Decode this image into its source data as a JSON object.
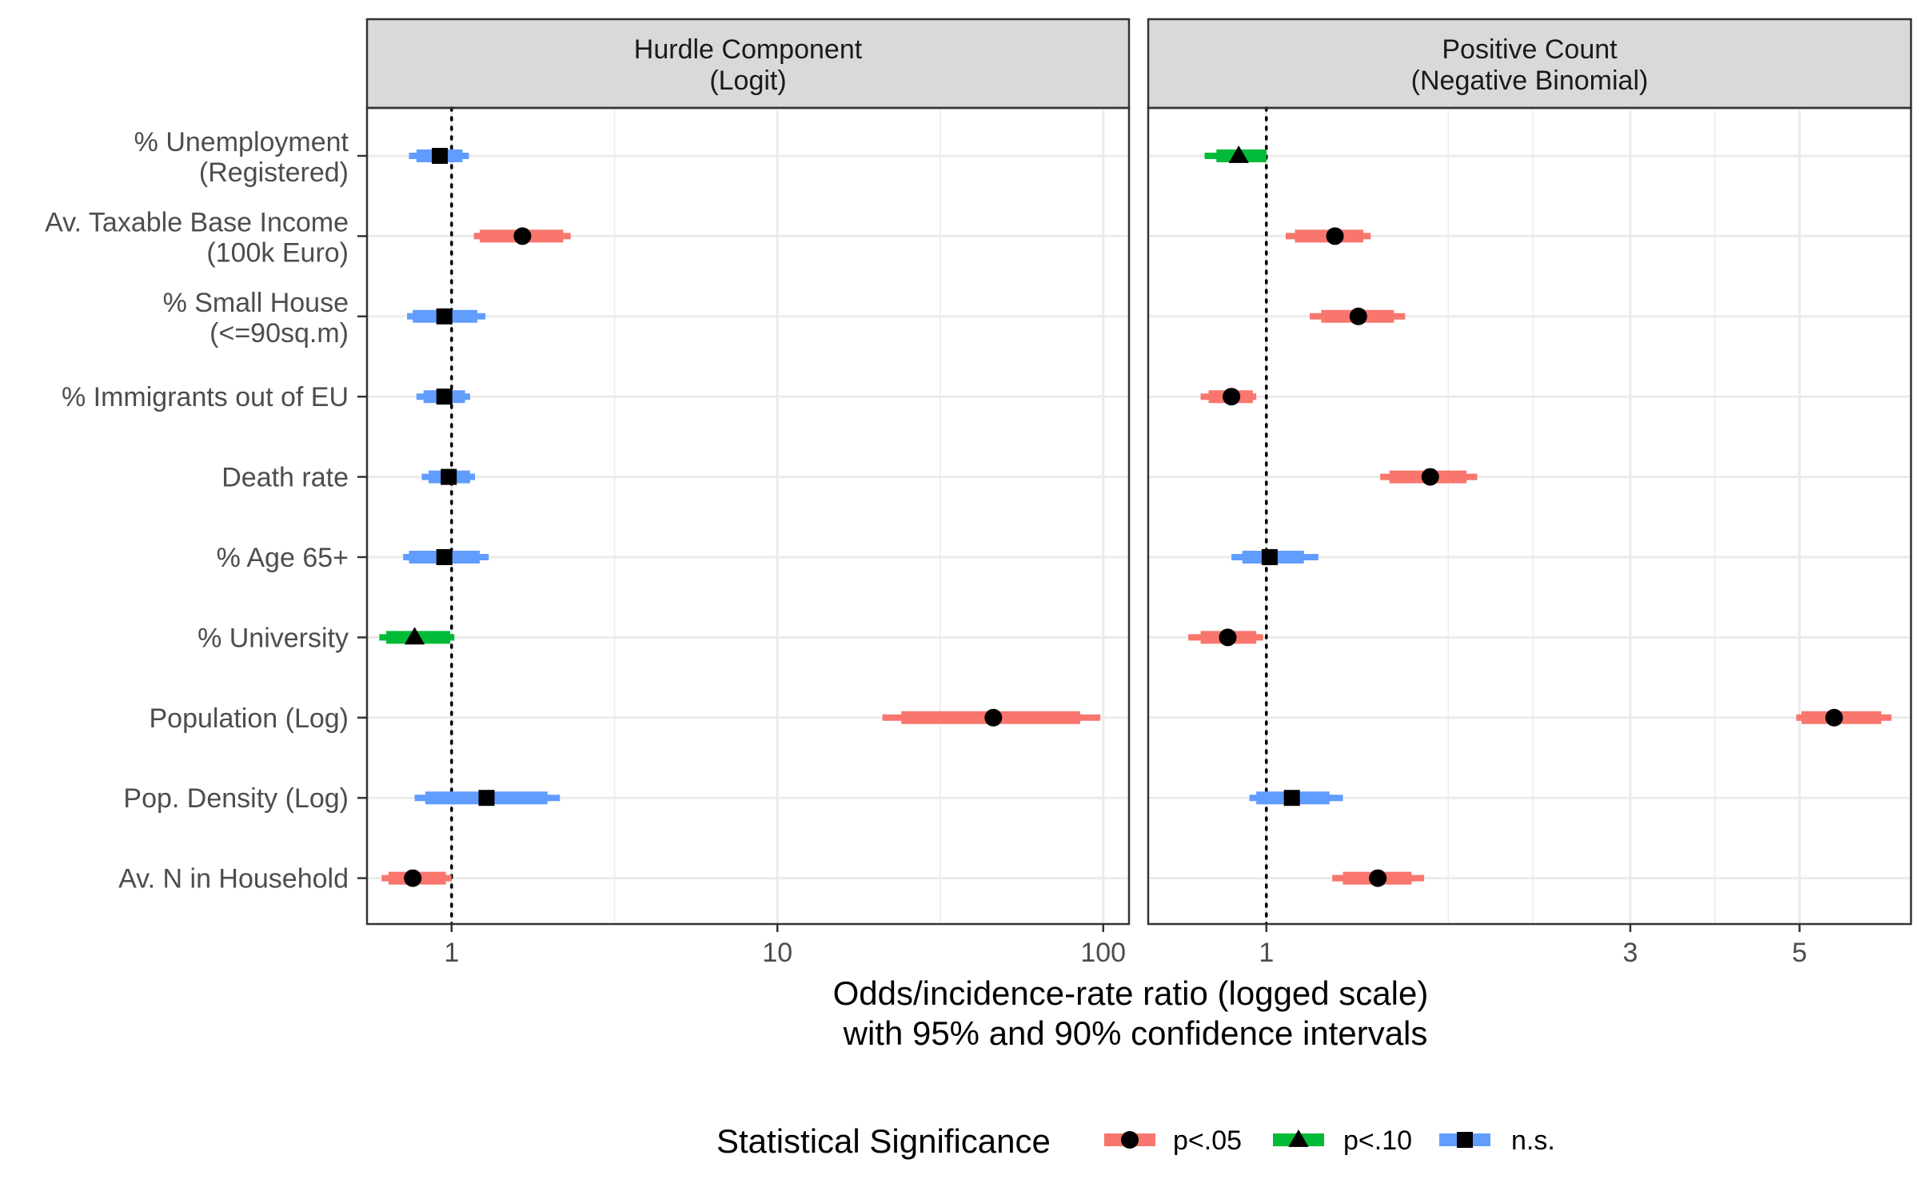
{
  "chart_data": {
    "type": "forest",
    "x_title_line1": "Odds/incidence-rate ratio (logged scale)",
    "x_title_line2": "with 95% and 90% confidence intervals",
    "x_scale": "log",
    "grid": true,
    "reference_line": 1,
    "variables": [
      {
        "line1": "% Unemployment",
        "line2": "(Registered)"
      },
      {
        "line1": "Av. Taxable Base Income",
        "line2": "(100k Euro)"
      },
      {
        "line1": "% Small House",
        "line2": "(<=90sq.m)"
      },
      {
        "line1": "% Immigrants out of EU",
        "line2": ""
      },
      {
        "line1": "Death rate",
        "line2": ""
      },
      {
        "line1": "% Age 65+",
        "line2": ""
      },
      {
        "line1": "% University",
        "line2": ""
      },
      {
        "line1": "Population (Log)",
        "line2": ""
      },
      {
        "line1": "Pop. Density (Log)",
        "line2": ""
      },
      {
        "line1": "Av. N in Household",
        "line2": ""
      }
    ],
    "legend": {
      "title": "Statistical Significance",
      "placement": "bottom",
      "entries": [
        {
          "key": "sig05",
          "label": "p<.05",
          "color": "#F8766D",
          "shape": "circle"
        },
        {
          "key": "sig10",
          "label": "p<.10",
          "color": "#00BA38",
          "shape": "triangle"
        },
        {
          "key": "ns",
          "label": "n.s.",
          "color": "#619CFF",
          "shape": "square"
        }
      ]
    },
    "panels": [
      {
        "title_line1": "Hurdle Component",
        "title_line2": "(Logit)",
        "xlim": [
          0.55,
          120
        ],
        "ticks": [
          1,
          10,
          100
        ],
        "tick_labels": [
          "1",
          "10",
          "100"
        ],
        "minor_grid": [
          3.162,
          31.62
        ],
        "estimates": [
          {
            "est": 0.92,
            "ci90": [
              0.78,
              1.08
            ],
            "ci95": [
              0.74,
              1.13
            ],
            "sig": "ns"
          },
          {
            "est": 1.65,
            "ci90": [
              1.22,
              2.2
            ],
            "ci95": [
              1.17,
              2.32
            ],
            "sig": "sig05"
          },
          {
            "est": 0.95,
            "ci90": [
              0.76,
              1.2
            ],
            "ci95": [
              0.73,
              1.27
            ],
            "sig": "ns"
          },
          {
            "est": 0.95,
            "ci90": [
              0.82,
              1.1
            ],
            "ci95": [
              0.78,
              1.14
            ],
            "sig": "ns"
          },
          {
            "est": 0.98,
            "ci90": [
              0.85,
              1.14
            ],
            "ci95": [
              0.81,
              1.18
            ],
            "sig": "ns"
          },
          {
            "est": 0.95,
            "ci90": [
              0.74,
              1.22
            ],
            "ci95": [
              0.71,
              1.3
            ],
            "sig": "ns"
          },
          {
            "est": 0.77,
            "ci90": [
              0.63,
              0.99
            ],
            "ci95": [
              0.6,
              1.02
            ],
            "sig": "sig10"
          },
          {
            "est": 46,
            "ci90": [
              24,
              85
            ],
            "ci95": [
              21,
              98
            ],
            "sig": "sig05"
          },
          {
            "est": 1.28,
            "ci90": [
              0.83,
              1.97
            ],
            "ci95": [
              0.77,
              2.15
            ],
            "sig": "ns"
          },
          {
            "est": 0.76,
            "ci90": [
              0.64,
              0.96
            ],
            "ci95": [
              0.61,
              1.0
            ],
            "sig": "sig05"
          }
        ]
      },
      {
        "title_line1": "Positive Count",
        "title_line2": "(Negative Binomial)",
        "xlim": [
          0.7,
          7.0
        ],
        "ticks": [
          1,
          3,
          5
        ],
        "tick_labels": [
          "1",
          "3",
          "5"
        ],
        "minor_grid": [
          1.732,
          2.236,
          3.873
        ],
        "estimates": [
          {
            "est": 0.92,
            "ci90": [
              0.86,
              1.0
            ],
            "ci95": [
              0.83,
              1.0
            ],
            "sig": "sig10"
          },
          {
            "est": 1.23,
            "ci90": [
              1.09,
              1.34
            ],
            "ci95": [
              1.06,
              1.37
            ],
            "sig": "sig05"
          },
          {
            "est": 1.32,
            "ci90": [
              1.18,
              1.47
            ],
            "ci95": [
              1.14,
              1.52
            ],
            "sig": "sig05"
          },
          {
            "est": 0.9,
            "ci90": [
              0.84,
              0.96
            ],
            "ci95": [
              0.82,
              0.97
            ],
            "sig": "sig05"
          },
          {
            "est": 1.64,
            "ci90": [
              1.45,
              1.83
            ],
            "ci95": [
              1.41,
              1.89
            ],
            "sig": "sig05"
          },
          {
            "est": 1.01,
            "ci90": [
              0.93,
              1.12
            ],
            "ci95": [
              0.9,
              1.17
            ],
            "sig": "ns"
          },
          {
            "est": 0.89,
            "ci90": [
              0.82,
              0.97
            ],
            "ci95": [
              0.79,
              0.99
            ],
            "sig": "sig05"
          },
          {
            "est": 5.55,
            "ci90": [
              5.03,
              6.4
            ],
            "ci95": [
              4.95,
              6.6
            ],
            "sig": "sig05"
          },
          {
            "est": 1.08,
            "ci90": [
              0.97,
              1.21
            ],
            "ci95": [
              0.95,
              1.26
            ],
            "sig": "ns"
          },
          {
            "est": 1.4,
            "ci90": [
              1.26,
              1.55
            ],
            "ci95": [
              1.22,
              1.61
            ],
            "sig": "sig05"
          }
        ]
      }
    ]
  }
}
